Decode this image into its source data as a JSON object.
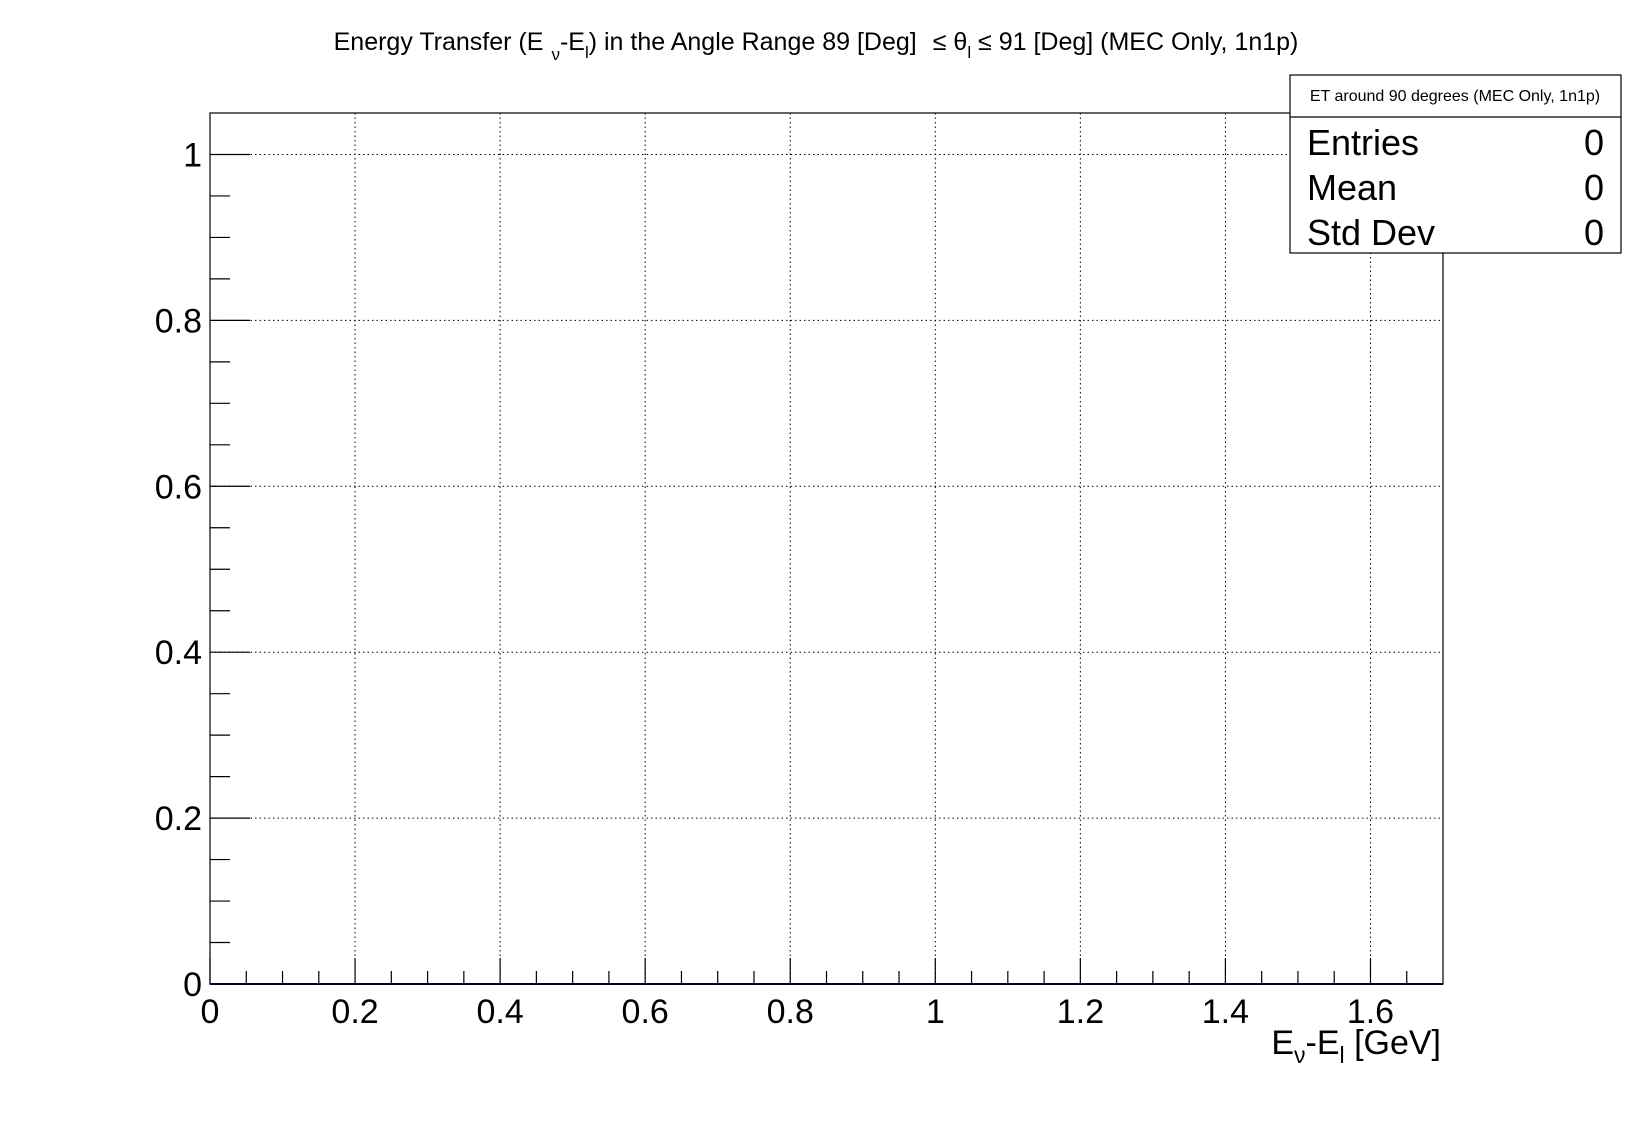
{
  "chart_data": {
    "type": "bar",
    "title": {
      "prefix": "Energy Transfer (E",
      "sub1": "ν",
      "mid1": "-E",
      "sub2": "l",
      "mid2": ") in the Angle Range 89 [Deg]",
      "mid3": "≤ θ",
      "sub3": "l",
      "suffix": " ≤ 91 [Deg] (MEC Only, 1n1p)"
    },
    "xlabel": {
      "main1": "E",
      "sub1": "ν",
      "main2": "-E",
      "sub2": "l",
      "main3": " [GeV]"
    },
    "ylabel": "",
    "xlim": [
      0,
      1.7
    ],
    "ylim": [
      0,
      1.05
    ],
    "x_ticks": [
      {
        "value": 0,
        "label": "0"
      },
      {
        "value": 0.2,
        "label": "0.2"
      },
      {
        "value": 0.4,
        "label": "0.4"
      },
      {
        "value": 0.6,
        "label": "0.6"
      },
      {
        "value": 0.8,
        "label": "0.8"
      },
      {
        "value": 1.0,
        "label": "1"
      },
      {
        "value": 1.2,
        "label": "1.2"
      },
      {
        "value": 1.4,
        "label": "1.4"
      },
      {
        "value": 1.6,
        "label": "1.6"
      }
    ],
    "y_ticks": [
      {
        "value": 0,
        "label": "0"
      },
      {
        "value": 0.2,
        "label": "0.2"
      },
      {
        "value": 0.4,
        "label": "0.4"
      },
      {
        "value": 0.6,
        "label": "0.6"
      },
      {
        "value": 0.8,
        "label": "0.8"
      },
      {
        "value": 1.0,
        "label": "1"
      }
    ],
    "grid": true,
    "series": [
      {
        "values": [],
        "color": "#000080"
      }
    ],
    "stats_box": {
      "title": "ET around 90 degrees (MEC Only, 1n1p)",
      "rows": [
        {
          "label": "Entries",
          "value": "0"
        },
        {
          "label": "Mean",
          "value": "0"
        },
        {
          "label": "Std Dev",
          "value": "0"
        }
      ],
      "placement": "top-right"
    }
  }
}
